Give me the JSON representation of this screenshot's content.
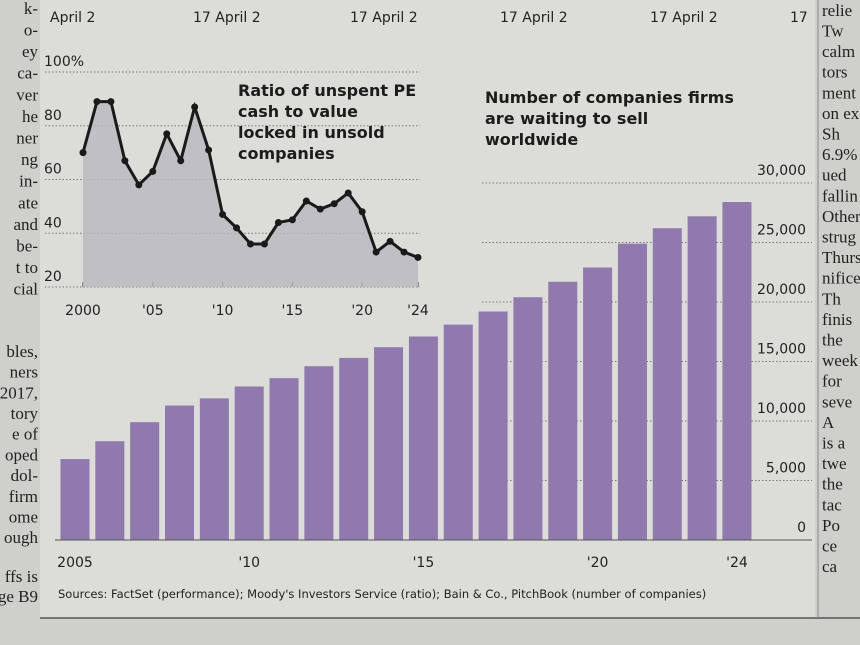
{
  "top_axis_labels": [
    "April 2",
    "17 April 2",
    "17 April 2",
    "17 April 2",
    "17 April 2",
    "17"
  ],
  "left_column": [
    "k-",
    "o-",
    "ey",
    "ca-",
    "ver",
    "he",
    "ner",
    "ng",
    "in-",
    "ate",
    "and",
    "be-",
    "t to",
    "cial",
    "bles,",
    "ners",
    "2017,",
    "tory",
    "e of",
    "oped",
    "dol-",
    "firm",
    "ome",
    "ough",
    "ffs is",
    "ge B9"
  ],
  "right_column": [
    "relie",
    "Tw",
    "calm",
    "tors",
    "ment",
    "on ex",
    "Sh",
    "6.9%",
    "ued",
    "fallin",
    "Other",
    "strug",
    "Thurs",
    "nifice",
    "Th",
    "finis",
    "the",
    "week",
    "for",
    "seve",
    "A",
    "is a",
    "twe",
    "the",
    "tac",
    "Po",
    "ce",
    "ca"
  ],
  "source": "Sources: FactSet (performance); Moody's Investors Service (ratio); Bain & Co., PitchBook (number of companies)",
  "chart_data": [
    {
      "type": "area",
      "title": "Ratio of unspent PE cash to value locked in unsold companies",
      "x": [
        2000,
        2001,
        2002,
        2003,
        2004,
        2005,
        2006,
        2007,
        2008,
        2009,
        2010,
        2011,
        2012,
        2013,
        2014,
        2015,
        2016,
        2017,
        2018,
        2019,
        2020,
        2021,
        2022,
        2023,
        2024
      ],
      "values": [
        70,
        89,
        89,
        67,
        58,
        63,
        77,
        67,
        87,
        71,
        47,
        42,
        36,
        36,
        44,
        45,
        52,
        49,
        51,
        55,
        48,
        33,
        37,
        33,
        31
      ],
      "color": "#1a1a1a",
      "fill": "#b9b9be",
      "xlim": [
        2000,
        2024
      ],
      "xticks": [
        2000,
        {
          "value": 2005,
          "label": "'05"
        },
        {
          "value": 2010,
          "label": "'10"
        },
        {
          "value": 2015,
          "label": "'15"
        },
        {
          "value": 2020,
          "label": "'20"
        },
        {
          "value": 2024,
          "label": "'24"
        }
      ],
      "ylim": [
        20,
        100
      ],
      "yticks": [
        20,
        40,
        60,
        80,
        {
          "value": 100,
          "label": "100%"
        }
      ],
      "grid": true
    },
    {
      "type": "bar",
      "title": "Number of companies firms are waiting to sell worldwide",
      "categories": [
        "2005",
        null,
        null,
        null,
        null,
        "'10",
        null,
        null,
        null,
        null,
        "'15",
        null,
        null,
        null,
        null,
        "'20",
        null,
        null,
        null,
        "'24"
      ],
      "values": [
        6800,
        8300,
        9900,
        11300,
        11900,
        12900,
        13600,
        14600,
        15300,
        16200,
        17100,
        18100,
        19200,
        20400,
        21700,
        22900,
        24900,
        26200,
        27200,
        28400
      ],
      "color": "#8f79ad",
      "ylim": [
        0,
        30000
      ],
      "yticks": [
        0,
        {
          "value": 5000,
          "label": "5,000"
        },
        {
          "value": 10000,
          "label": "10,000"
        },
        {
          "value": 15000,
          "label": "15,000"
        },
        {
          "value": 20000,
          "label": "20,000"
        },
        {
          "value": 25000,
          "label": "25,000"
        },
        {
          "value": 30000,
          "label": "30,000"
        }
      ],
      "grid": true
    }
  ]
}
